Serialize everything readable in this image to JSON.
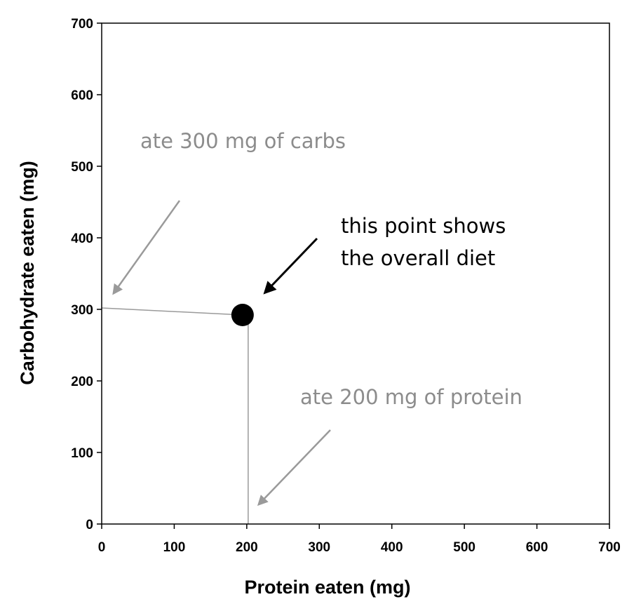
{
  "chart_data": {
    "type": "scatter",
    "xlabel": "Protein eaten (mg)",
    "ylabel": "Carbohydrate eaten (mg)",
    "xlim": [
      0,
      700
    ],
    "ylim": [
      0,
      700
    ],
    "xticks": [
      "0",
      "100",
      "200",
      "300",
      "400",
      "500",
      "600",
      "700"
    ],
    "yticks": [
      "0",
      "100",
      "200",
      "300",
      "400",
      "500",
      "600",
      "700"
    ],
    "grid": false,
    "points": [
      {
        "x": 200,
        "y": 300
      }
    ],
    "annotations": [
      {
        "text": "ate 300 mg of carbs",
        "color": "#8c8c8c"
      },
      {
        "line1": "this point shows",
        "line2": "the overall diet",
        "color": "#000000"
      },
      {
        "text": "ate 200 mg of protein",
        "color": "#8c8c8c"
      }
    ],
    "colors": {
      "point": "#000000",
      "guide": "#9a9a9a",
      "axis": "#000000"
    }
  }
}
